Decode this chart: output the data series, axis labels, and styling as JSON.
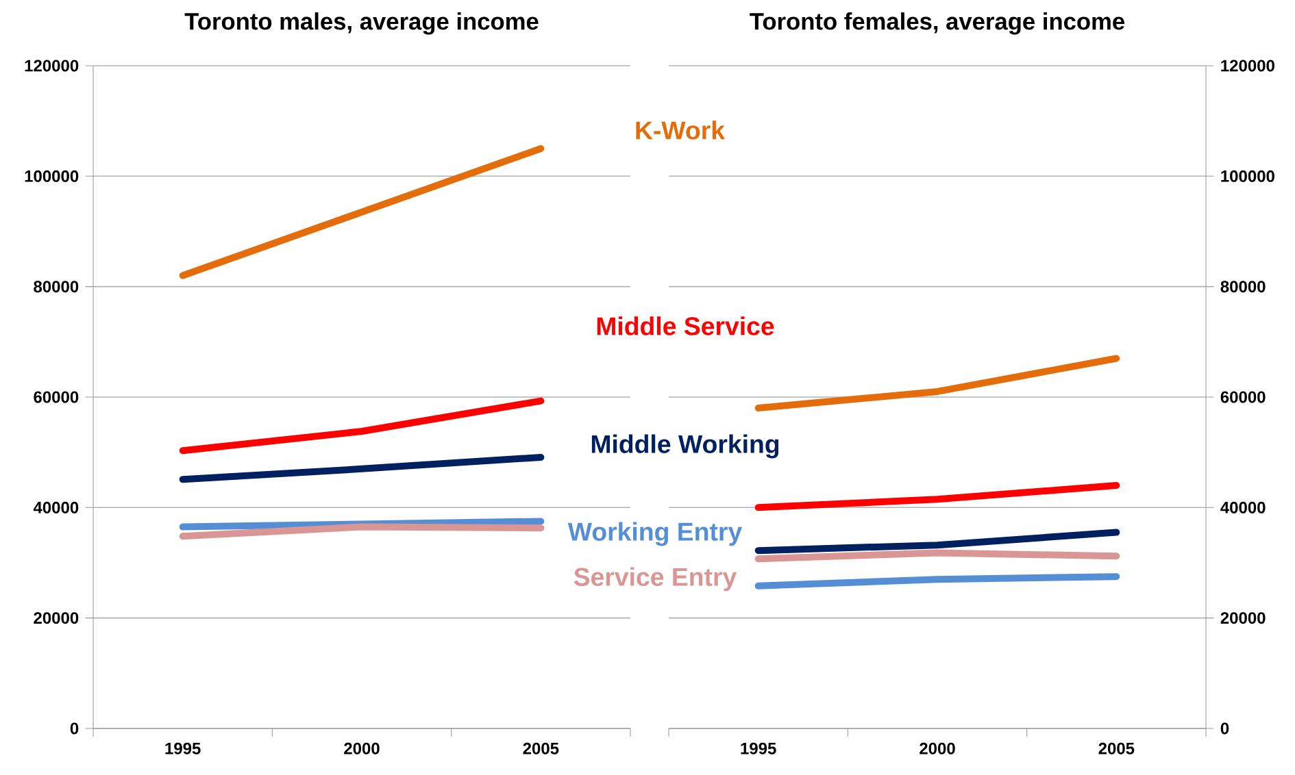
{
  "chart_data": [
    {
      "type": "line",
      "title": "Toronto males, average income",
      "categories": [
        "1995",
        "2000",
        "2005"
      ],
      "ylim": [
        0,
        120000
      ],
      "yticks": [
        0,
        20000,
        40000,
        60000,
        80000,
        100000,
        120000
      ],
      "grid": "y",
      "marker": "none",
      "line_style": "solid",
      "series": [
        {
          "name": "K-Work",
          "color": "#e46c0a",
          "values": [
            82000,
            93500,
            105000
          ]
        },
        {
          "name": "Middle Service",
          "color": "#ff0000",
          "values": [
            50300,
            53800,
            59300
          ]
        },
        {
          "name": "Middle Working",
          "color": "#002060",
          "values": [
            45100,
            47000,
            49100
          ]
        },
        {
          "name": "Working Entry",
          "color": "#558ed5",
          "values": [
            36500,
            37000,
            37500
          ]
        },
        {
          "name": "Service Entry",
          "color": "#d99694",
          "values": [
            34800,
            36500,
            36300
          ]
        }
      ]
    },
    {
      "type": "line",
      "title": "Toronto females, average income",
      "categories": [
        "1995",
        "2000",
        "2005"
      ],
      "ylim": [
        0,
        120000
      ],
      "yticks": [
        0,
        20000,
        40000,
        60000,
        80000,
        100000,
        120000
      ],
      "grid": "y",
      "marker": "none",
      "line_style": "solid",
      "series": [
        {
          "color": "#e46c0a",
          "values": [
            58000,
            61000,
            67000
          ]
        },
        {
          "color": "#ff0000",
          "values": [
            40000,
            41500,
            44000
          ]
        },
        {
          "color": "#002060",
          "values": [
            32200,
            33200,
            35500
          ]
        },
        {
          "color": "#558ed5",
          "values": [
            25800,
            27000,
            27500
          ]
        },
        {
          "color": "#d99694",
          "values": [
            30700,
            31800,
            31200
          ]
        }
      ]
    }
  ]
}
